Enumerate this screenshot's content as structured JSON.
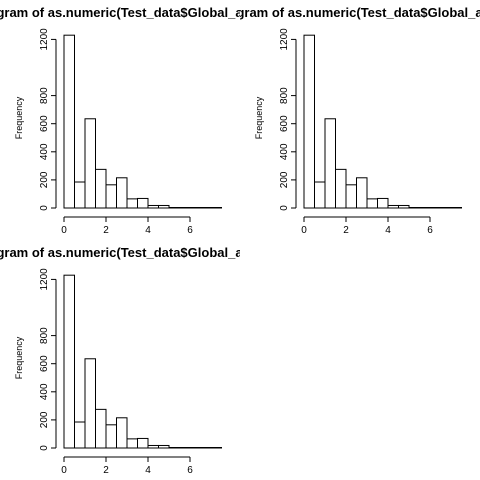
{
  "chart_data": [
    {
      "type": "bar",
      "title": "Histogram of as.numeric(Test_data$Global_active_power)",
      "xlabel": "",
      "ylabel": "Frequency",
      "bins": [
        [
          0,
          0.5
        ],
        [
          0.5,
          1
        ],
        [
          1,
          1.5
        ],
        [
          1.5,
          2
        ],
        [
          2,
          2.5
        ],
        [
          2.5,
          3
        ],
        [
          3,
          3.5
        ],
        [
          3.5,
          4
        ],
        [
          4,
          4.5
        ],
        [
          4.5,
          5
        ],
        [
          5,
          5.5
        ],
        [
          5.5,
          6
        ],
        [
          6,
          6.5
        ],
        [
          6.5,
          7
        ],
        [
          7,
          7.5
        ]
      ],
      "values": [
        1230,
        185,
        635,
        275,
        165,
        215,
        65,
        68,
        18,
        18,
        3,
        2,
        1,
        1,
        1
      ],
      "xlim": [
        0,
        7.5
      ],
      "ylim": [
        0,
        1230
      ],
      "xticks": [
        "0",
        "2",
        "4",
        "6"
      ],
      "yticks": [
        "0",
        "200",
        "400",
        "600",
        "800",
        "1200"
      ]
    },
    {
      "type": "bar",
      "title": "Histogram of as.numeric(Test_data$Global_active_power)",
      "xlabel": "",
      "ylabel": "Frequency",
      "bins": [
        [
          0,
          0.5
        ],
        [
          0.5,
          1
        ],
        [
          1,
          1.5
        ],
        [
          1.5,
          2
        ],
        [
          2,
          2.5
        ],
        [
          2.5,
          3
        ],
        [
          3,
          3.5
        ],
        [
          3.5,
          4
        ],
        [
          4,
          4.5
        ],
        [
          4.5,
          5
        ],
        [
          5,
          5.5
        ],
        [
          5.5,
          6
        ],
        [
          6,
          6.5
        ],
        [
          6.5,
          7
        ],
        [
          7,
          7.5
        ]
      ],
      "values": [
        1230,
        185,
        635,
        275,
        165,
        215,
        65,
        68,
        18,
        18,
        3,
        2,
        1,
        1,
        1
      ],
      "xlim": [
        0,
        7.5
      ],
      "ylim": [
        0,
        1230
      ],
      "xticks": [
        "0",
        "2",
        "4",
        "6"
      ],
      "yticks": [
        "0",
        "200",
        "400",
        "600",
        "800",
        "1200"
      ]
    },
    {
      "type": "bar",
      "title": "Histogram of as.numeric(Test_data$Global_active_power)",
      "xlabel": "",
      "ylabel": "Frequency",
      "bins": [
        [
          0,
          0.5
        ],
        [
          0.5,
          1
        ],
        [
          1,
          1.5
        ],
        [
          1.5,
          2
        ],
        [
          2,
          2.5
        ],
        [
          2.5,
          3
        ],
        [
          3,
          3.5
        ],
        [
          3.5,
          4
        ],
        [
          4,
          4.5
        ],
        [
          4.5,
          5
        ],
        [
          5,
          5.5
        ],
        [
          5.5,
          6
        ],
        [
          6,
          6.5
        ],
        [
          6.5,
          7
        ],
        [
          7,
          7.5
        ]
      ],
      "values": [
        1230,
        185,
        635,
        275,
        165,
        215,
        65,
        68,
        18,
        18,
        3,
        2,
        1,
        1,
        1
      ],
      "xlim": [
        0,
        7.5
      ],
      "ylim": [
        0,
        1230
      ],
      "xticks": [
        "0",
        "2",
        "4",
        "6"
      ],
      "yticks": [
        "0",
        "200",
        "400",
        "600",
        "800",
        "1200"
      ]
    }
  ]
}
